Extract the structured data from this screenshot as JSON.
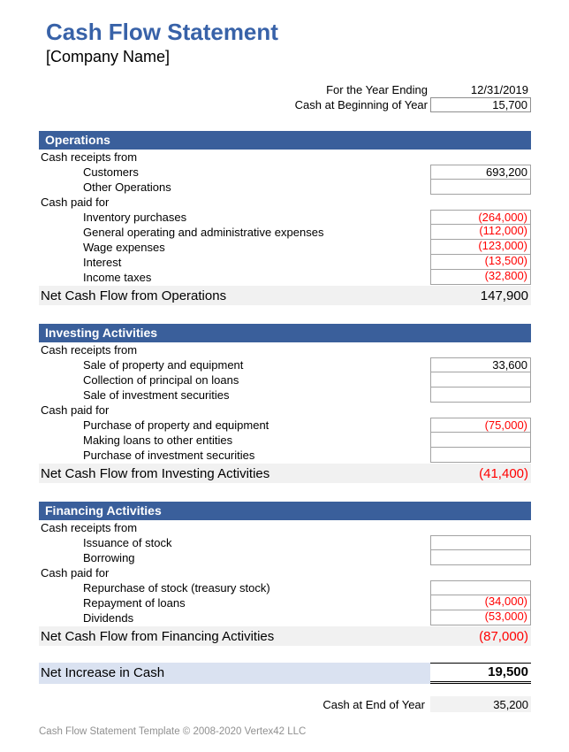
{
  "title": "Cash Flow Statement",
  "company": "[Company Name]",
  "meta": {
    "year_ending_label": "For the Year Ending",
    "year_ending_value": "12/31/2019",
    "begin_cash_label": "Cash at Beginning of Year",
    "begin_cash_value": "15,700"
  },
  "sections": [
    {
      "name": "Operations",
      "rows": [
        {
          "type": "group",
          "label": "Cash receipts from"
        },
        {
          "type": "item",
          "label": "Customers",
          "value": "693,200",
          "negative": false
        },
        {
          "type": "item",
          "label": "Other Operations",
          "value": "",
          "negative": false
        },
        {
          "type": "group",
          "label": "Cash paid for"
        },
        {
          "type": "item",
          "label": "Inventory purchases",
          "value": "(264,000)",
          "negative": true
        },
        {
          "type": "item",
          "label": "General operating and administrative expenses",
          "value": "(112,000)",
          "negative": true
        },
        {
          "type": "item",
          "label": "Wage expenses",
          "value": "(123,000)",
          "negative": true
        },
        {
          "type": "item",
          "label": "Interest",
          "value": "(13,500)",
          "negative": true
        },
        {
          "type": "item",
          "label": "Income taxes",
          "value": "(32,800)",
          "negative": true
        }
      ],
      "net": {
        "label": "Net Cash Flow from Operations",
        "value": "147,900",
        "negative": false
      }
    },
    {
      "name": "Investing Activities",
      "rows": [
        {
          "type": "group",
          "label": "Cash receipts from"
        },
        {
          "type": "item",
          "label": "Sale of property and equipment",
          "value": "33,600",
          "negative": false
        },
        {
          "type": "item",
          "label": "Collection of principal on loans",
          "value": "",
          "negative": false
        },
        {
          "type": "item",
          "label": "Sale of investment securities",
          "value": "",
          "negative": false
        },
        {
          "type": "group",
          "label": "Cash paid for"
        },
        {
          "type": "item",
          "label": "Purchase of property and equipment",
          "value": "(75,000)",
          "negative": true
        },
        {
          "type": "item",
          "label": "Making loans to other entities",
          "value": "",
          "negative": false
        },
        {
          "type": "item",
          "label": "Purchase of investment securities",
          "value": "",
          "negative": false
        }
      ],
      "net": {
        "label": "Net Cash Flow from Investing Activities",
        "value": "(41,400)",
        "negative": true
      }
    },
    {
      "name": "Financing Activities",
      "rows": [
        {
          "type": "group",
          "label": "Cash receipts from"
        },
        {
          "type": "item",
          "label": "Issuance of stock",
          "value": "",
          "negative": false
        },
        {
          "type": "item",
          "label": "Borrowing",
          "value": "",
          "negative": false
        },
        {
          "type": "group",
          "label": "Cash paid for"
        },
        {
          "type": "item",
          "label": "Repurchase of stock (treasury stock)",
          "value": "",
          "negative": false
        },
        {
          "type": "item",
          "label": "Repayment of loans",
          "value": "(34,000)",
          "negative": true
        },
        {
          "type": "item",
          "label": "Dividends",
          "value": "(53,000)",
          "negative": true
        }
      ],
      "net": {
        "label": "Net Cash Flow from Financing Activities",
        "value": "(87,000)",
        "negative": true
      }
    }
  ],
  "net_increase": {
    "label": "Net Increase in Cash",
    "value": "19,500"
  },
  "end_cash": {
    "label": "Cash at End of Year",
    "value": "35,200"
  },
  "footer": "Cash Flow Statement Template © 2008-2020 Vertex42 LLC",
  "colors": {
    "title_blue": "#3862A8",
    "section_header_bg": "#3A5F9B",
    "section_header_text": "#FFFFFF",
    "net_row_bg": "#F1F1F1",
    "net_increase_row_bg": "#DAE2F1",
    "negative_value": "#FF0000",
    "value_box_border": "#A3A3A3",
    "footer_text": "#909090"
  }
}
